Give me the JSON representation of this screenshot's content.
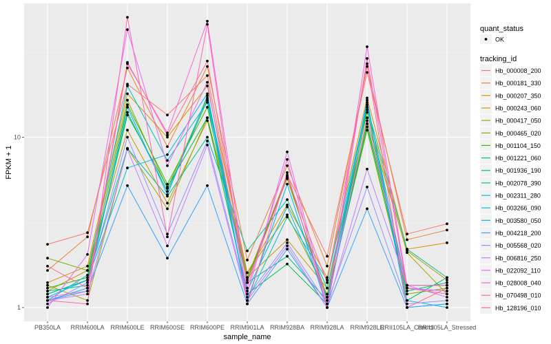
{
  "chart_data": {
    "type": "line",
    "title": "",
    "xlabel": "sample_name",
    "ylabel": "FPKM + 1",
    "yscale": "log10",
    "ylim": [
      0.83,
      61
    ],
    "y_ticks": [
      1,
      10
    ],
    "y_tick_labels": [
      "1",
      "10"
    ],
    "grid": true,
    "legend_position": "right",
    "categories": [
      "PB350LA",
      "RRIM600LA",
      "RRIM600LE",
      "RRIM600SE",
      "RRIM600PE",
      "RRIM901LA",
      "RRIM928BA",
      "RRIM928LA",
      "RRIM928LE",
      "RRII105LA_Control",
      "RRII105LA_Stressed"
    ],
    "shape_legend": {
      "title": "quant_status",
      "items": [
        {
          "label": "OK"
        }
      ]
    },
    "color_legend_title": "tracking_id",
    "series": [
      {
        "name": "Hb_000008_200",
        "color": "#F8766D",
        "values": [
          2.35,
          2.75,
          20.5,
          13.5,
          23.0,
          1.5,
          6.0,
          2.0,
          24.0,
          2.7,
          3.1
        ]
      },
      {
        "name": "Hb_000181_330",
        "color": "#EA8331",
        "values": [
          1.65,
          2.6,
          25.5,
          8.8,
          26.0,
          1.9,
          6.8,
          1.75,
          26.0,
          2.5,
          2.85
        ]
      },
      {
        "name": "Hb_000207_350",
        "color": "#D89000",
        "values": [
          1.4,
          1.75,
          18.0,
          10.0,
          20.0,
          1.6,
          4.0,
          1.5,
          17.0,
          2.2,
          2.4
        ]
      },
      {
        "name": "Hb_000243_060",
        "color": "#C09B00",
        "values": [
          1.25,
          1.65,
          11.0,
          4.1,
          12.5,
          1.5,
          2.5,
          1.3,
          12.5,
          2.15,
          1.45
        ]
      },
      {
        "name": "Hb_000417_050",
        "color": "#A3A500",
        "values": [
          1.35,
          1.1,
          8.6,
          3.8,
          13.0,
          1.6,
          3.5,
          1.2,
          14.0,
          2.1,
          1.2
        ]
      },
      {
        "name": "Hb_000465_020",
        "color": "#7CAE00",
        "values": [
          1.95,
          1.65,
          16.5,
          5.0,
          17.0,
          1.5,
          5.7,
          1.15,
          11.0,
          1.2,
          1.3
        ]
      },
      {
        "name": "Hb_001104_150",
        "color": "#39B600",
        "values": [
          1.3,
          1.5,
          15.5,
          5.3,
          15.0,
          1.45,
          5.9,
          1.1,
          12.0,
          1.35,
          1.35
        ]
      },
      {
        "name": "Hb_001221_060",
        "color": "#00BB4E",
        "values": [
          1.2,
          1.45,
          13.5,
          5.1,
          13.0,
          1.2,
          1.8,
          1.05,
          14.5,
          1.1,
          1.5
        ]
      },
      {
        "name": "Hb_001936_190",
        "color": "#00BF7D",
        "values": [
          1.25,
          1.35,
          14.0,
          4.8,
          16.5,
          1.4,
          2.0,
          1.1,
          11.5,
          1.25,
          1.4
        ]
      },
      {
        "name": "Hb_002078_390",
        "color": "#00C1A3",
        "values": [
          1.2,
          1.45,
          8.6,
          4.5,
          10.0,
          2.15,
          4.3,
          1.3,
          15.0,
          2.2,
          1.5
        ]
      },
      {
        "name": "Hb_002311_280",
        "color": "#00BFC4",
        "values": [
          1.1,
          1.55,
          20.0,
          7.3,
          16.0,
          1.1,
          3.4,
          1.45,
          15.5,
          1.3,
          1.25
        ]
      },
      {
        "name": "Hb_003266_090",
        "color": "#00BAE0",
        "values": [
          1.15,
          1.45,
          6.6,
          7.9,
          18.0,
          1.25,
          3.9,
          1.15,
          16.0,
          1.1,
          1.0
        ]
      },
      {
        "name": "Hb_003580_050",
        "color": "#00B0F6",
        "values": [
          1.1,
          1.3,
          15.0,
          4.6,
          17.5,
          1.1,
          5.3,
          1.0,
          16.5,
          1.0,
          1.05
        ]
      },
      {
        "name": "Hb_004218_200",
        "color": "#35A2FF",
        "values": [
          1.1,
          1.25,
          5.2,
          1.95,
          5.2,
          1.05,
          2.2,
          1.0,
          3.8,
          1.0,
          1.05
        ]
      },
      {
        "name": "Hb_005568_020",
        "color": "#9590FF",
        "values": [
          1.05,
          1.4,
          10.0,
          2.7,
          9.5,
          1.15,
          2.4,
          1.05,
          5.1,
          1.05,
          1.1
        ]
      },
      {
        "name": "Hb_006816_250",
        "color": "#C77CFF",
        "values": [
          1.1,
          1.2,
          8.5,
          2.3,
          9.0,
          1.1,
          2.3,
          1.0,
          6.5,
          1.35,
          1.15
        ]
      },
      {
        "name": "Hb_022092_110",
        "color": "#E76BF3",
        "values": [
          1.0,
          2.05,
          42.8,
          6.8,
          21.0,
          1.2,
          8.2,
          1.05,
          13.0,
          1.3,
          1.25
        ]
      },
      {
        "name": "Hb_028008_040",
        "color": "#FA62DB",
        "values": [
          1.15,
          1.25,
          27.0,
          10.6,
          48.0,
          1.3,
          7.4,
          1.0,
          34.0,
          1.35,
          1.35
        ]
      },
      {
        "name": "Hb_070498_010",
        "color": "#FF62BC",
        "values": [
          1.1,
          1.05,
          50.6,
          2.6,
          46.0,
          1.05,
          6.2,
          1.0,
          29.0,
          1.3,
          1.2
        ]
      },
      {
        "name": "Hb_128196_010",
        "color": "#FF6C91",
        "values": [
          1.75,
          1.3,
          27.5,
          10.3,
          28.0,
          1.4,
          5.8,
          1.4,
          27.0,
          1.0,
          1.3
        ]
      }
    ]
  }
}
